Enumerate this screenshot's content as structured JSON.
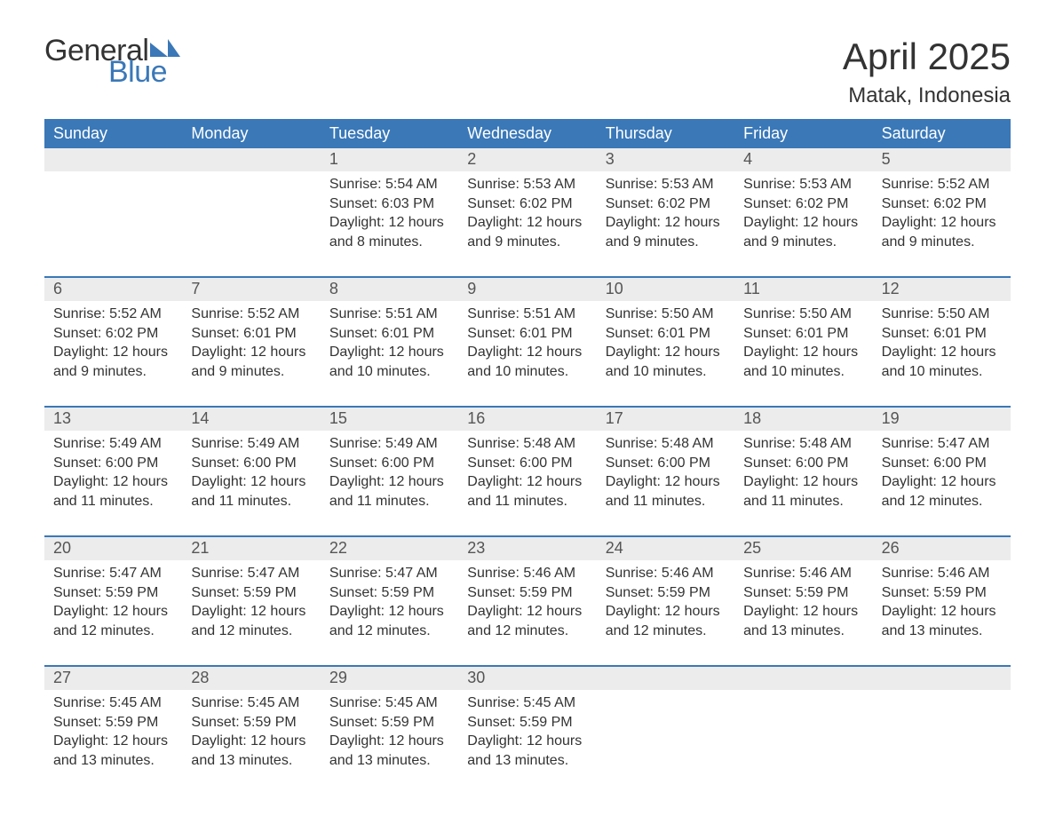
{
  "brand": {
    "general": "General",
    "blue": "Blue",
    "mark_color": "#3a78b8"
  },
  "title": {
    "month_year": "April 2025",
    "location": "Matak, Indonesia"
  },
  "colors": {
    "header_bg": "#3a78b8",
    "header_text": "#ffffff",
    "daynum_bg": "#ececec",
    "week_border": "#3a78b8",
    "text": "#333333"
  },
  "day_headers": [
    "Sunday",
    "Monday",
    "Tuesday",
    "Wednesday",
    "Thursday",
    "Friday",
    "Saturday"
  ],
  "weeks": [
    [
      {
        "num": "",
        "sunrise": "",
        "sunset": "",
        "daylight1": "",
        "daylight2": ""
      },
      {
        "num": "",
        "sunrise": "",
        "sunset": "",
        "daylight1": "",
        "daylight2": ""
      },
      {
        "num": "1",
        "sunrise": "Sunrise: 5:54 AM",
        "sunset": "Sunset: 6:03 PM",
        "daylight1": "Daylight: 12 hours",
        "daylight2": "and 8 minutes."
      },
      {
        "num": "2",
        "sunrise": "Sunrise: 5:53 AM",
        "sunset": "Sunset: 6:02 PM",
        "daylight1": "Daylight: 12 hours",
        "daylight2": "and 9 minutes."
      },
      {
        "num": "3",
        "sunrise": "Sunrise: 5:53 AM",
        "sunset": "Sunset: 6:02 PM",
        "daylight1": "Daylight: 12 hours",
        "daylight2": "and 9 minutes."
      },
      {
        "num": "4",
        "sunrise": "Sunrise: 5:53 AM",
        "sunset": "Sunset: 6:02 PM",
        "daylight1": "Daylight: 12 hours",
        "daylight2": "and 9 minutes."
      },
      {
        "num": "5",
        "sunrise": "Sunrise: 5:52 AM",
        "sunset": "Sunset: 6:02 PM",
        "daylight1": "Daylight: 12 hours",
        "daylight2": "and 9 minutes."
      }
    ],
    [
      {
        "num": "6",
        "sunrise": "Sunrise: 5:52 AM",
        "sunset": "Sunset: 6:02 PM",
        "daylight1": "Daylight: 12 hours",
        "daylight2": "and 9 minutes."
      },
      {
        "num": "7",
        "sunrise": "Sunrise: 5:52 AM",
        "sunset": "Sunset: 6:01 PM",
        "daylight1": "Daylight: 12 hours",
        "daylight2": "and 9 minutes."
      },
      {
        "num": "8",
        "sunrise": "Sunrise: 5:51 AM",
        "sunset": "Sunset: 6:01 PM",
        "daylight1": "Daylight: 12 hours",
        "daylight2": "and 10 minutes."
      },
      {
        "num": "9",
        "sunrise": "Sunrise: 5:51 AM",
        "sunset": "Sunset: 6:01 PM",
        "daylight1": "Daylight: 12 hours",
        "daylight2": "and 10 minutes."
      },
      {
        "num": "10",
        "sunrise": "Sunrise: 5:50 AM",
        "sunset": "Sunset: 6:01 PM",
        "daylight1": "Daylight: 12 hours",
        "daylight2": "and 10 minutes."
      },
      {
        "num": "11",
        "sunrise": "Sunrise: 5:50 AM",
        "sunset": "Sunset: 6:01 PM",
        "daylight1": "Daylight: 12 hours",
        "daylight2": "and 10 minutes."
      },
      {
        "num": "12",
        "sunrise": "Sunrise: 5:50 AM",
        "sunset": "Sunset: 6:01 PM",
        "daylight1": "Daylight: 12 hours",
        "daylight2": "and 10 minutes."
      }
    ],
    [
      {
        "num": "13",
        "sunrise": "Sunrise: 5:49 AM",
        "sunset": "Sunset: 6:00 PM",
        "daylight1": "Daylight: 12 hours",
        "daylight2": "and 11 minutes."
      },
      {
        "num": "14",
        "sunrise": "Sunrise: 5:49 AM",
        "sunset": "Sunset: 6:00 PM",
        "daylight1": "Daylight: 12 hours",
        "daylight2": "and 11 minutes."
      },
      {
        "num": "15",
        "sunrise": "Sunrise: 5:49 AM",
        "sunset": "Sunset: 6:00 PM",
        "daylight1": "Daylight: 12 hours",
        "daylight2": "and 11 minutes."
      },
      {
        "num": "16",
        "sunrise": "Sunrise: 5:48 AM",
        "sunset": "Sunset: 6:00 PM",
        "daylight1": "Daylight: 12 hours",
        "daylight2": "and 11 minutes."
      },
      {
        "num": "17",
        "sunrise": "Sunrise: 5:48 AM",
        "sunset": "Sunset: 6:00 PM",
        "daylight1": "Daylight: 12 hours",
        "daylight2": "and 11 minutes."
      },
      {
        "num": "18",
        "sunrise": "Sunrise: 5:48 AM",
        "sunset": "Sunset: 6:00 PM",
        "daylight1": "Daylight: 12 hours",
        "daylight2": "and 11 minutes."
      },
      {
        "num": "19",
        "sunrise": "Sunrise: 5:47 AM",
        "sunset": "Sunset: 6:00 PM",
        "daylight1": "Daylight: 12 hours",
        "daylight2": "and 12 minutes."
      }
    ],
    [
      {
        "num": "20",
        "sunrise": "Sunrise: 5:47 AM",
        "sunset": "Sunset: 5:59 PM",
        "daylight1": "Daylight: 12 hours",
        "daylight2": "and 12 minutes."
      },
      {
        "num": "21",
        "sunrise": "Sunrise: 5:47 AM",
        "sunset": "Sunset: 5:59 PM",
        "daylight1": "Daylight: 12 hours",
        "daylight2": "and 12 minutes."
      },
      {
        "num": "22",
        "sunrise": "Sunrise: 5:47 AM",
        "sunset": "Sunset: 5:59 PM",
        "daylight1": "Daylight: 12 hours",
        "daylight2": "and 12 minutes."
      },
      {
        "num": "23",
        "sunrise": "Sunrise: 5:46 AM",
        "sunset": "Sunset: 5:59 PM",
        "daylight1": "Daylight: 12 hours",
        "daylight2": "and 12 minutes."
      },
      {
        "num": "24",
        "sunrise": "Sunrise: 5:46 AM",
        "sunset": "Sunset: 5:59 PM",
        "daylight1": "Daylight: 12 hours",
        "daylight2": "and 12 minutes."
      },
      {
        "num": "25",
        "sunrise": "Sunrise: 5:46 AM",
        "sunset": "Sunset: 5:59 PM",
        "daylight1": "Daylight: 12 hours",
        "daylight2": "and 13 minutes."
      },
      {
        "num": "26",
        "sunrise": "Sunrise: 5:46 AM",
        "sunset": "Sunset: 5:59 PM",
        "daylight1": "Daylight: 12 hours",
        "daylight2": "and 13 minutes."
      }
    ],
    [
      {
        "num": "27",
        "sunrise": "Sunrise: 5:45 AM",
        "sunset": "Sunset: 5:59 PM",
        "daylight1": "Daylight: 12 hours",
        "daylight2": "and 13 minutes."
      },
      {
        "num": "28",
        "sunrise": "Sunrise: 5:45 AM",
        "sunset": "Sunset: 5:59 PM",
        "daylight1": "Daylight: 12 hours",
        "daylight2": "and 13 minutes."
      },
      {
        "num": "29",
        "sunrise": "Sunrise: 5:45 AM",
        "sunset": "Sunset: 5:59 PM",
        "daylight1": "Daylight: 12 hours",
        "daylight2": "and 13 minutes."
      },
      {
        "num": "30",
        "sunrise": "Sunrise: 5:45 AM",
        "sunset": "Sunset: 5:59 PM",
        "daylight1": "Daylight: 12 hours",
        "daylight2": "and 13 minutes."
      },
      {
        "num": "",
        "sunrise": "",
        "sunset": "",
        "daylight1": "",
        "daylight2": ""
      },
      {
        "num": "",
        "sunrise": "",
        "sunset": "",
        "daylight1": "",
        "daylight2": ""
      },
      {
        "num": "",
        "sunrise": "",
        "sunset": "",
        "daylight1": "",
        "daylight2": ""
      }
    ]
  ]
}
